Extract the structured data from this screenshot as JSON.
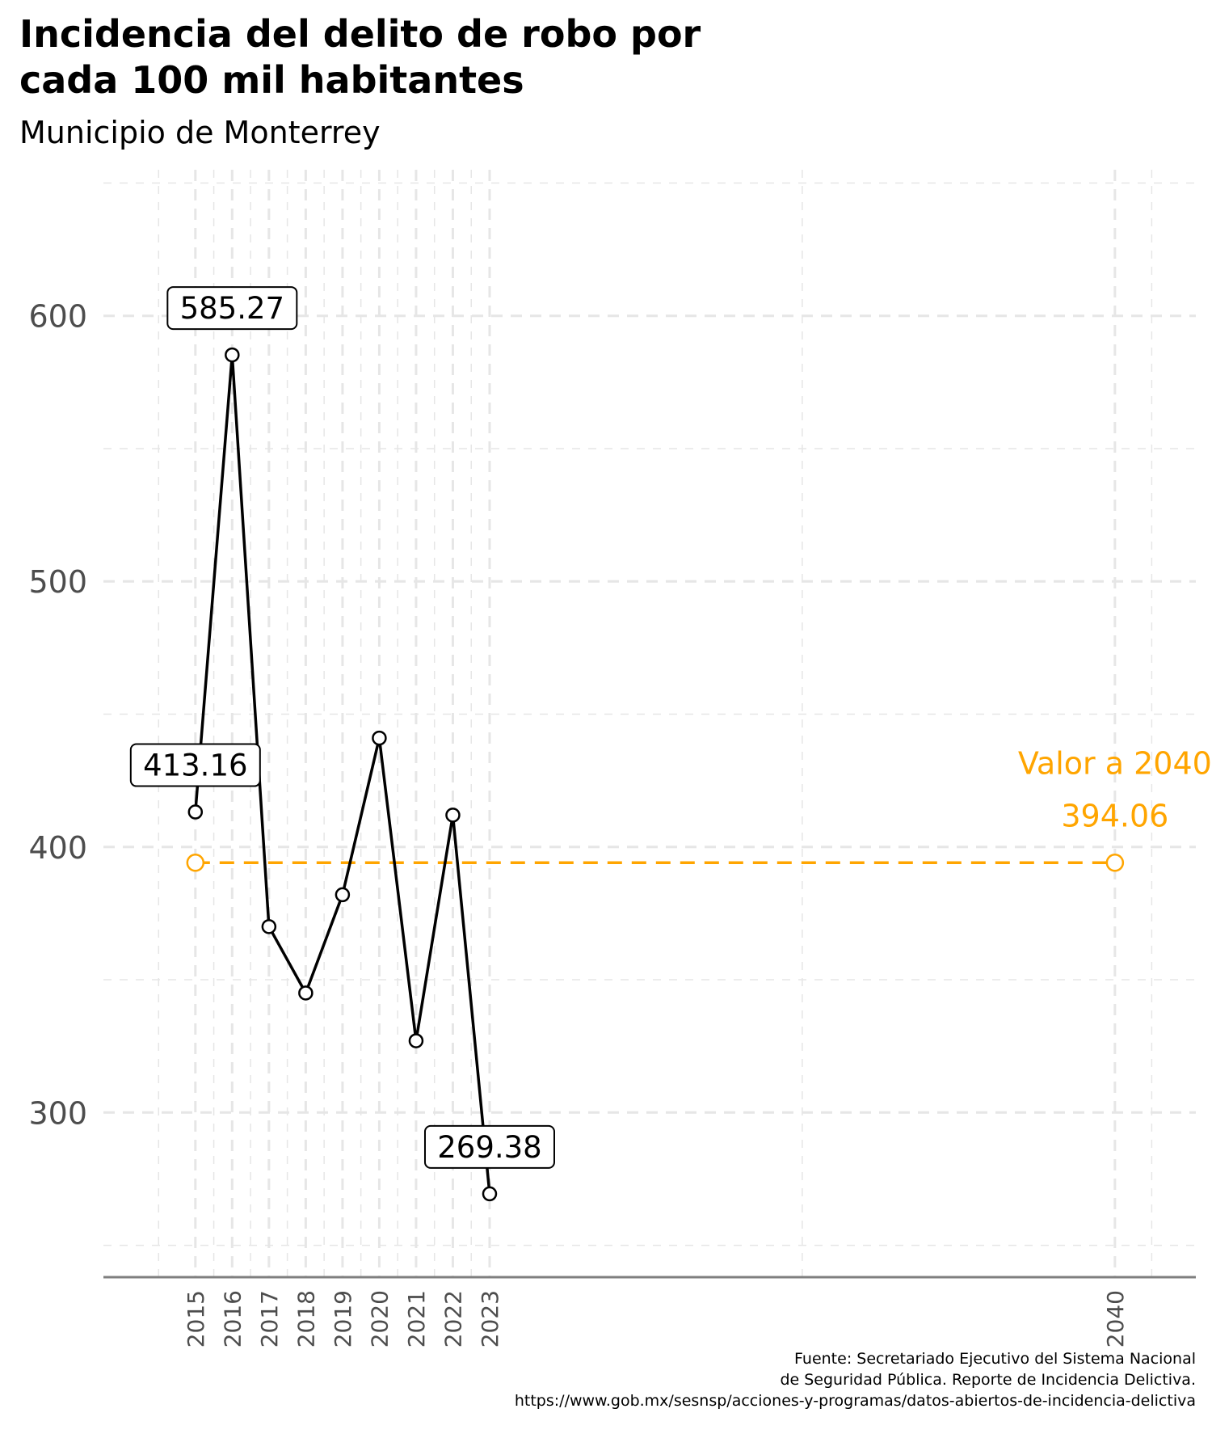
{
  "title_line1": "Incidencia del delito de robo por",
  "title_line2": "cada 100 mil habitantes",
  "subtitle": "Municipio de Monterrey",
  "caption_lines": [
    "Fuente: Secretariado Ejecutivo del Sistema Nacional",
    "de Seguridad Pública. Reporte de Incidencia Delictiva.",
    "https://www.gob.mx/sesnsp/acciones-y-programas/datos-abiertos-de-incidencia-delictiva"
  ],
  "colors": {
    "series": "#000000",
    "target": "#FFA500",
    "grid": "#e6e6e6",
    "axis_text": "#4d4d4d",
    "axis_line": "#7f7f7f"
  },
  "chart_data": {
    "type": "line",
    "x": [
      2015,
      2016,
      2017,
      2018,
      2019,
      2020,
      2021,
      2022,
      2023
    ],
    "series": [
      {
        "values": [
          413.16,
          585.27,
          370,
          345,
          382,
          441,
          327,
          412,
          269.38
        ]
      }
    ],
    "labeled_points": [
      {
        "x": 2015,
        "y": 413.16,
        "label": "413.16"
      },
      {
        "x": 2016,
        "y": 585.27,
        "label": "585.27"
      },
      {
        "x": 2023,
        "y": 269.38,
        "label": "269.38"
      }
    ],
    "target": {
      "x_start": 2015,
      "x_end": 2040,
      "value": 394.06,
      "label_line1": "Valor a 2040",
      "label_line2": "394.06"
    },
    "x_ticks": [
      2015,
      2016,
      2017,
      2018,
      2019,
      2020,
      2021,
      2022,
      2023,
      2040
    ],
    "y_ticks": [
      300,
      400,
      500,
      600
    ],
    "xlim": [
      2012.5,
      2042.2
    ],
    "ylim": [
      238,
      655
    ],
    "grid": true,
    "xlabel": "",
    "ylabel": ""
  }
}
